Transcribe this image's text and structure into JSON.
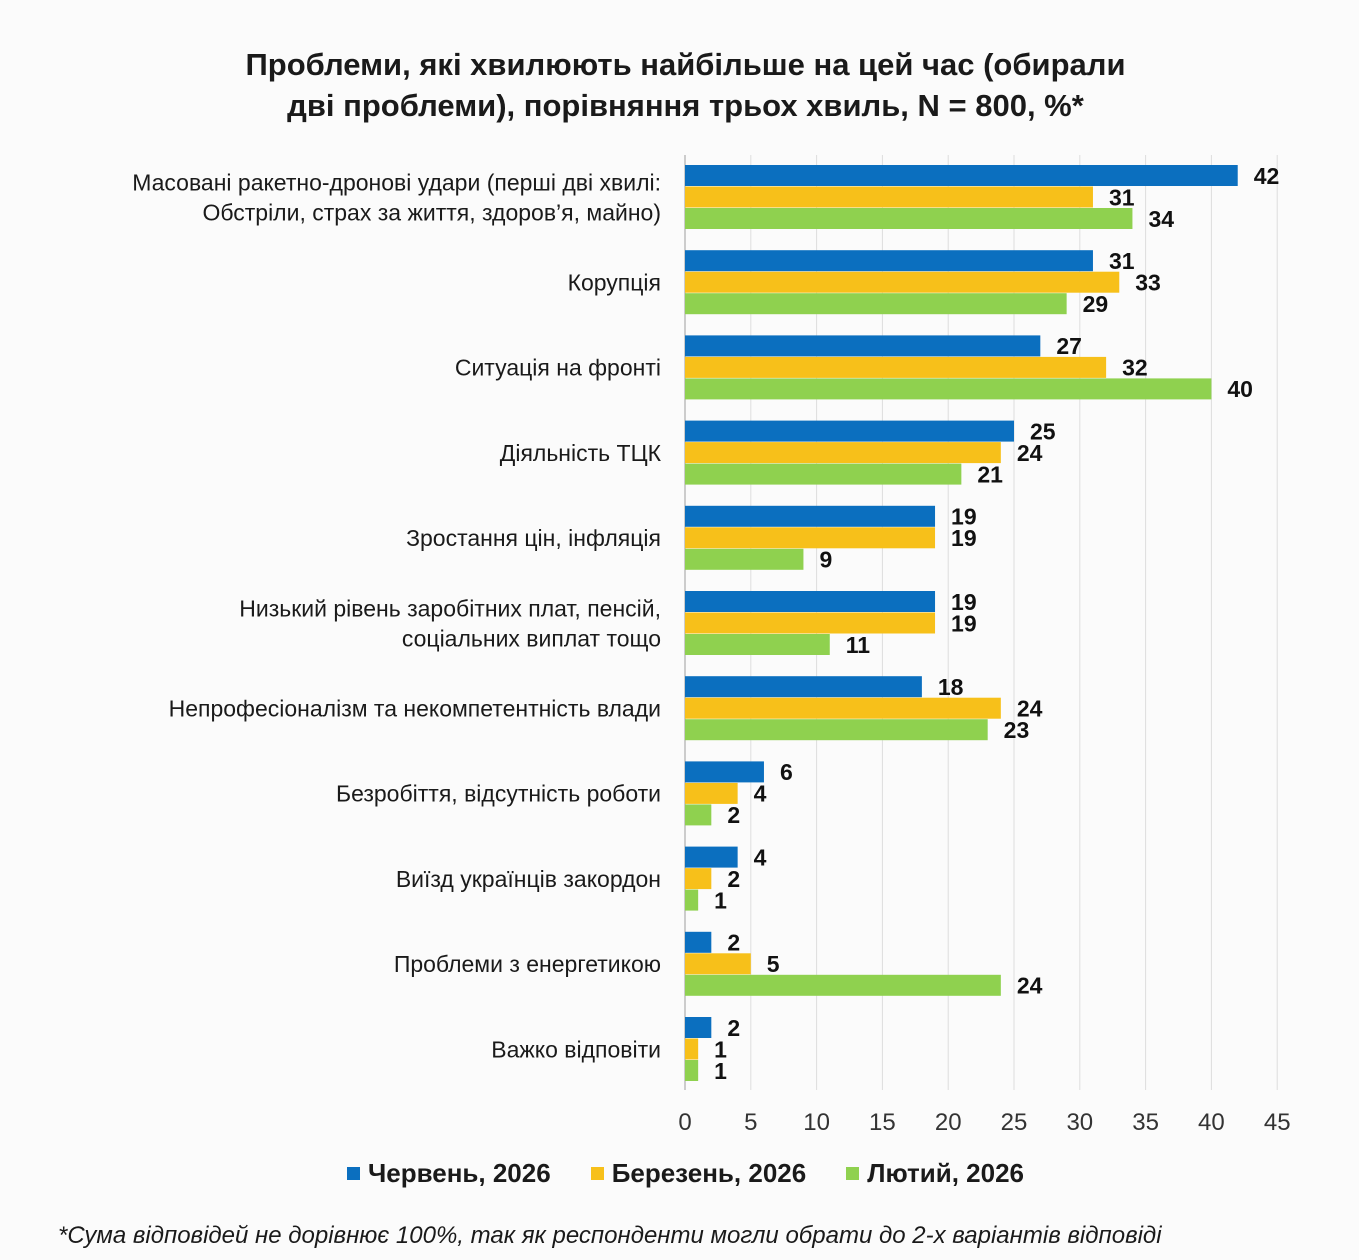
{
  "chart_data": {
    "type": "bar",
    "orientation": "horizontal",
    "title": [
      "Проблеми, які хвилюють найбільше на цей час (обирали",
      "дві проблеми), порівняння трьох хвиль, N = 800, %*"
    ],
    "categories": [
      [
        "Масовані ракетно-дронові удари (перші дві хвилі:",
        "Обстріли, страх за життя, здоров’я, майно)"
      ],
      [
        "Корупція"
      ],
      [
        "Ситуація на фронті"
      ],
      [
        "Діяльність ТЦК"
      ],
      [
        "Зростання цін, інфляція"
      ],
      [
        "Низький рівень заробітних плат, пенсій,",
        "соціальних виплат тощо"
      ],
      [
        "Непрофесіоналізм та некомпетентність влади"
      ],
      [
        "Безробіття, відсутність роботи"
      ],
      [
        "Виїзд українців закордон"
      ],
      [
        "Проблеми з енергетикою"
      ],
      [
        "Важко відповіти"
      ]
    ],
    "series": [
      {
        "name": "Червень, 2026",
        "color": "#0b6fbf",
        "values": [
          42,
          31,
          27,
          25,
          19,
          19,
          18,
          6,
          4,
          2,
          2
        ]
      },
      {
        "name": "Березень, 2026",
        "color": "#f7c01a",
        "values": [
          31,
          33,
          32,
          24,
          19,
          19,
          24,
          4,
          2,
          5,
          1
        ]
      },
      {
        "name": "Лютий, 2026",
        "color": "#8fd14f",
        "values": [
          34,
          29,
          40,
          21,
          9,
          11,
          23,
          2,
          1,
          24,
          1
        ]
      }
    ],
    "xlim": [
      0,
      45
    ],
    "xticks": [
      0,
      5,
      10,
      15,
      20,
      25,
      30,
      35,
      40,
      45
    ],
    "grid": true,
    "legend_position": "bottom",
    "footnote": "*Сума відповідей не дорівнює 100%, так як респонденти могли обрати до 2-х варіантів відповіді"
  }
}
